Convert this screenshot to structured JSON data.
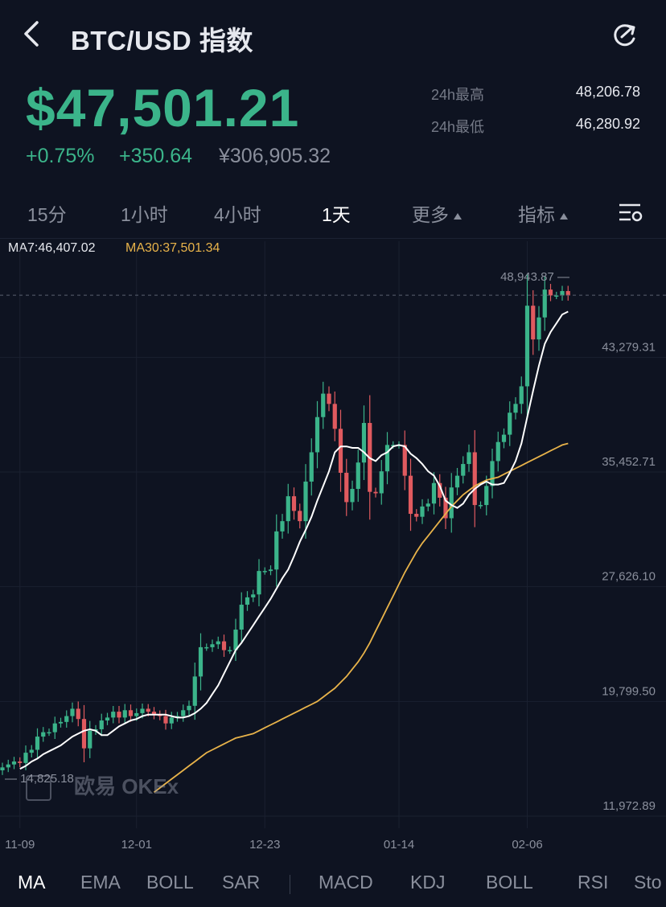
{
  "header": {
    "title": "BTC/USD 指数",
    "back_icon": "chevron-left-icon",
    "share_icon": "share-icon"
  },
  "ticker": {
    "price": "$47,501.21",
    "change_pct": "+0.75%",
    "change_abs": "+350.64",
    "cny_price": "¥306,905.32",
    "high_label": "24h最高",
    "high_value": "48,206.78",
    "low_label": "24h最低",
    "low_value": "46,280.92"
  },
  "period_tabs": {
    "items": [
      "15分",
      "1小时",
      "4小时",
      "1天",
      "更多",
      "指标"
    ],
    "active": "1天",
    "settings_icon": "chart-settings-icon"
  },
  "indicators": {
    "ma7": "MA7:46,407.02",
    "ma30": "MA30:37,501.34"
  },
  "chart_data": {
    "type": "candlestick",
    "max_marker": "48,943.87 —",
    "min_marker": "— 14,825.18",
    "y_ticks": [
      "43,279.31",
      "35,452.71",
      "27,626.10",
      "19,799.50",
      "11,972.89"
    ],
    "x_ticks": [
      "11-09",
      "12-01",
      "12-23",
      "01-14",
      "02-06"
    ],
    "ylim": [
      11972.89,
      51200
    ],
    "colors": {
      "up": "#3bb48a",
      "down": "#e05a5f",
      "ma7": "#ffffff",
      "ma30": "#e8b34a"
    },
    "close_values": [
      15300,
      15500,
      15700,
      15600,
      16300,
      16500,
      17400,
      17700,
      17700,
      18300,
      18400,
      18800,
      19300,
      18600,
      16600,
      17800,
      17900,
      18500,
      18700,
      19100,
      18700,
      19200,
      18800,
      19000,
      19300,
      19100,
      18900,
      18800,
      18300,
      18700,
      18800,
      19200,
      19500,
      21500,
      23500,
      23500,
      23700,
      23900,
      23300,
      23300,
      24700,
      26400,
      26900,
      27100,
      28700,
      28700,
      28800,
      31400,
      32100,
      33800,
      32800,
      32100,
      34800,
      36800,
      39200,
      40800,
      40100,
      38400,
      35400,
      33400,
      34300,
      36100,
      38800,
      34100,
      34000,
      35500,
      37300,
      37300,
      37300,
      35200,
      32600,
      32400,
      33100,
      33300,
      34700,
      33700,
      32300,
      34400,
      35200,
      36000,
      36800,
      33200,
      33200,
      34500,
      36200,
      37500,
      38000,
      39500,
      40100,
      41300,
      46800,
      44500,
      46000,
      47900,
      47500,
      47500,
      47800,
      47500
    ],
    "ma7_values": [
      15200,
      15400,
      15700,
      15900,
      16200,
      16400,
      16600,
      16800,
      17100,
      17400,
      17600,
      17800,
      17900,
      17800,
      17500,
      17500,
      17800,
      18100,
      18300,
      18500,
      18600,
      18800,
      18900,
      18900,
      18900,
      18900,
      18800,
      18700,
      18700,
      18800,
      19000,
      19300,
      19700,
      20300,
      20900,
      21700,
      22500,
      23300,
      23800,
      24400,
      25000,
      25600,
      26200,
      26800,
      27500,
      28200,
      28800,
      29700,
      30700,
      31500,
      32400,
      33500,
      34500,
      35500,
      36800,
      37200,
      37200,
      37100,
      37100,
      36800,
      36400,
      36200,
      36600,
      36800,
      37200,
      37300,
      37200,
      36700,
      36400,
      36000,
      35500,
      35200,
      34500,
      33500,
      33200,
      33000,
      33300,
      33900,
      34300,
      34600,
      34800,
      34600,
      34600,
      34700,
      35400,
      36200,
      37400,
      39200,
      41000,
      42700,
      44200,
      45000,
      45600,
      46200,
      46400
    ],
    "ma30_values": [
      13600,
      13900,
      14200,
      14500,
      14800,
      15100,
      15400,
      15700,
      16000,
      16300,
      16500,
      16700,
      16900,
      17100,
      17300,
      17400,
      17500,
      17600,
      17800,
      18000,
      18200,
      18400,
      18600,
      18800,
      19000,
      19200,
      19400,
      19600,
      19800,
      20100,
      20400,
      20700,
      21100,
      21500,
      22000,
      22500,
      23100,
      23800,
      24600,
      25400,
      26200,
      27000,
      27800,
      28600,
      29300,
      30000,
      30600,
      31100,
      31600,
      32100,
      32600,
      33100,
      33500,
      33900,
      34200,
      34500,
      34700,
      34900,
      35000,
      35100,
      35300,
      35500,
      35700,
      35900,
      36100,
      36300,
      36500,
      36700,
      36900,
      37100,
      37300,
      37400
    ]
  },
  "watermark": "欧易 OKEx",
  "bottom_tabs": {
    "items": [
      "MA",
      "EMA",
      "BOLL",
      "SAR",
      "MACD",
      "KDJ",
      "BOLL",
      "RSI",
      "Sto"
    ],
    "active": "MA"
  }
}
